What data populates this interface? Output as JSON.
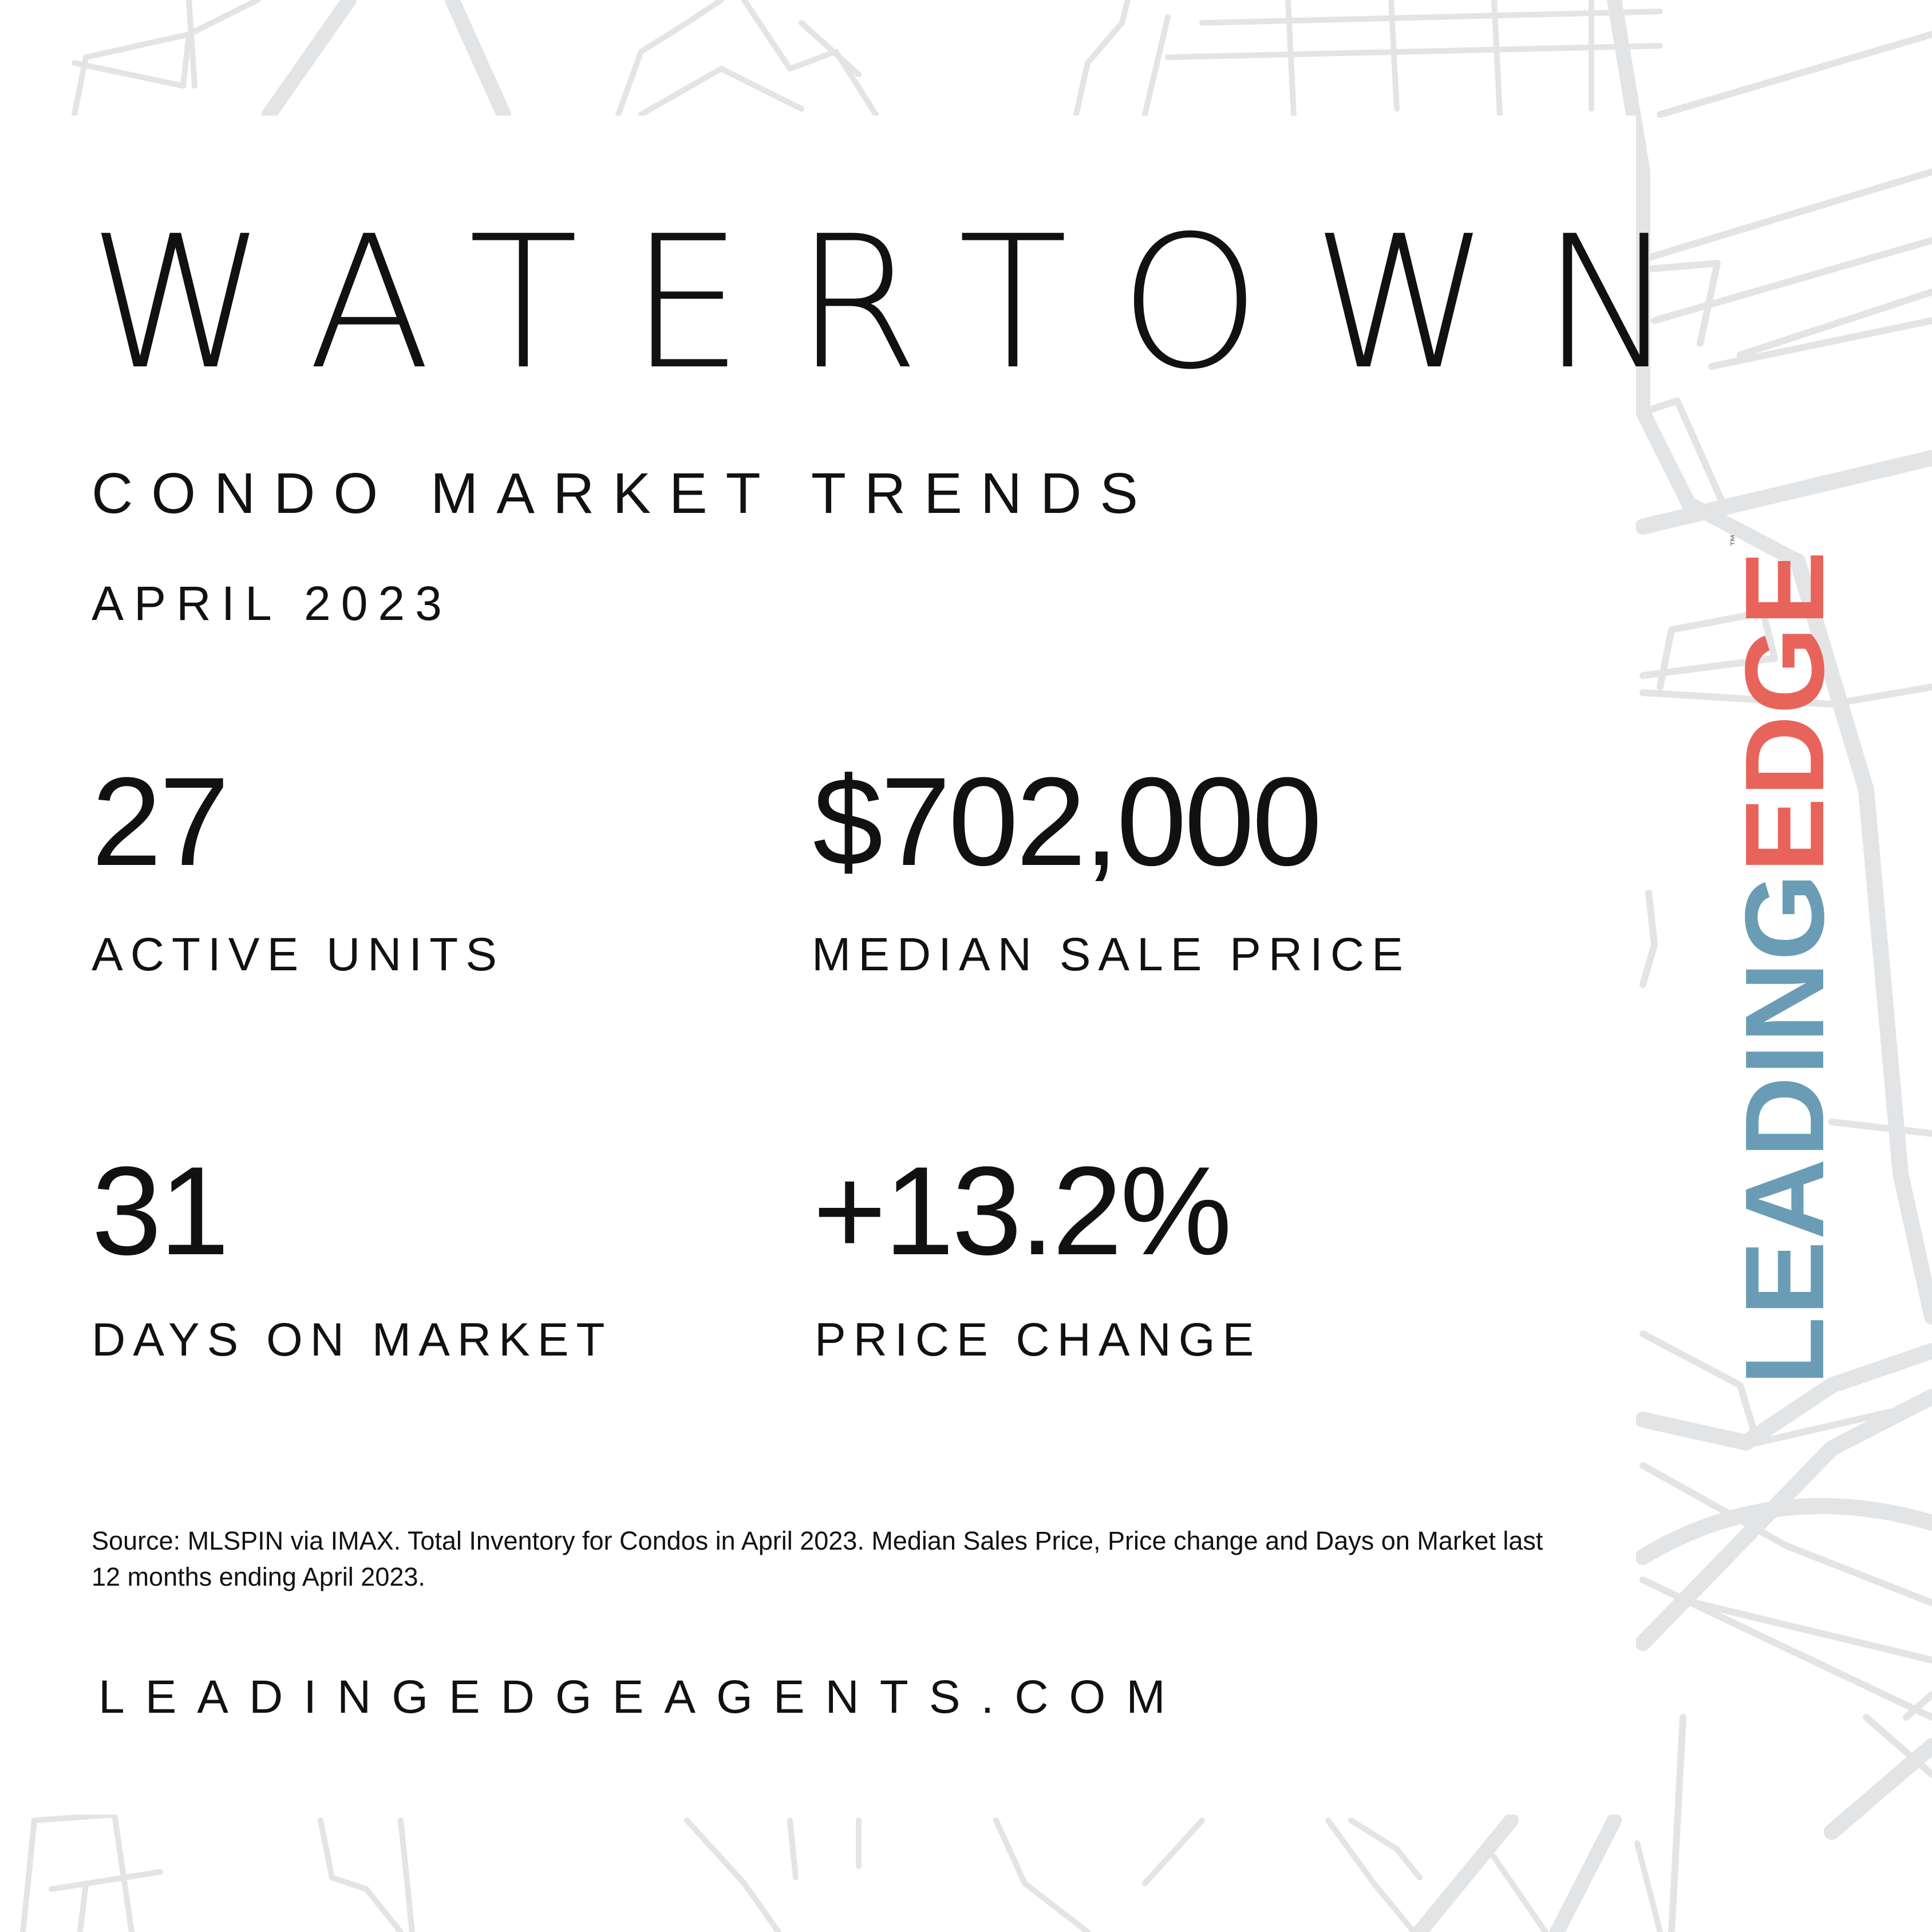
{
  "title": "WATERTOWN",
  "subtitle": "CONDO MARKET TRENDS",
  "date": "APRIL 2023",
  "stats": {
    "active_units": {
      "value": "27",
      "label": "ACTIVE UNITS"
    },
    "median_price": {
      "value": "$702,000",
      "label": "MEDIAN SALE PRICE"
    },
    "days_on_market": {
      "value": "31",
      "label": "DAYS ON MARKET"
    },
    "price_change": {
      "value": "+13.2%",
      "label": "PRICE CHANGE"
    }
  },
  "source_note": "Source: MLSPIN via IMAX. Total Inventory for Condos in April 2023. Median Sales Price, Price change and Days on Market last 12 months ending April 2023.",
  "website": "LEADINGEDGEAGENTS.COM",
  "logo": {
    "part1": "LEADING",
    "part2": "EDGE",
    "tm": "™",
    "color_leading": "#6a9db5",
    "color_edge": "#e8645a"
  },
  "colors": {
    "background": "#ffffff",
    "map_lines": "#e3e4e6",
    "text": "#111111"
  }
}
